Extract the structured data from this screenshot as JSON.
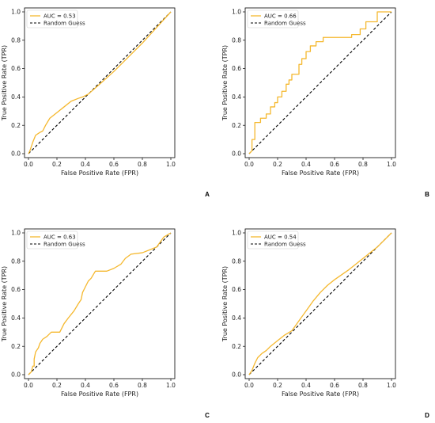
{
  "chart_data": [
    {
      "type": "line",
      "panel_label": "A",
      "xlabel": "False Positive Rate (FPR)",
      "ylabel": "True Positive Rate (TPR)",
      "xlim": [
        0,
        1
      ],
      "ylim": [
        0,
        1
      ],
      "xticks": [
        "0.0",
        "0.2",
        "0.4",
        "0.6",
        "0.8",
        "1.0"
      ],
      "yticks": [
        "0.0",
        "0.2",
        "0.4",
        "0.6",
        "0.8",
        "1.0"
      ],
      "grid": false,
      "legend_placement": "top-left",
      "series": [
        {
          "name": "AUC = 0.53",
          "color": "#f5b82e",
          "style": "solid",
          "points": [
            [
              0,
              0
            ],
            [
              0.01,
              0.02
            ],
            [
              0.03,
              0.08
            ],
            [
              0.05,
              0.13
            ],
            [
              0.08,
              0.15
            ],
            [
              0.1,
              0.16
            ],
            [
              0.12,
              0.2
            ],
            [
              0.15,
              0.25
            ],
            [
              0.2,
              0.29
            ],
            [
              0.25,
              0.33
            ],
            [
              0.3,
              0.37
            ],
            [
              0.35,
              0.39
            ],
            [
              0.38,
              0.4
            ],
            [
              0.42,
              0.42
            ],
            [
              0.5,
              0.49
            ],
            [
              0.6,
              0.58
            ],
            [
              0.7,
              0.68
            ],
            [
              0.8,
              0.78
            ],
            [
              0.9,
              0.89
            ],
            [
              1,
              1
            ]
          ]
        },
        {
          "name": "Random Guess",
          "color": "#000000",
          "style": "dashed",
          "points": [
            [
              0,
              0
            ],
            [
              1,
              1
            ]
          ]
        }
      ]
    },
    {
      "type": "line",
      "panel_label": "B",
      "xlabel": "False Positive Rate (FPR)",
      "ylabel": "True Positive Rate (TPR)",
      "xlim": [
        0,
        1
      ],
      "ylim": [
        0,
        1
      ],
      "xticks": [
        "0.0",
        "0.2",
        "0.4",
        "0.6",
        "0.8",
        "1.0"
      ],
      "yticks": [
        "0.0",
        "0.2",
        "0.4",
        "0.6",
        "0.8",
        "1.0"
      ],
      "grid": false,
      "legend_placement": "top-left",
      "series": [
        {
          "name": "AUC = 0.66",
          "color": "#f5b82e",
          "style": "solid",
          "points": [
            [
              0,
              0
            ],
            [
              0.02,
              0.02
            ],
            [
              0.02,
              0.1
            ],
            [
              0.04,
              0.1
            ],
            [
              0.04,
              0.22
            ],
            [
              0.08,
              0.22
            ],
            [
              0.08,
              0.25
            ],
            [
              0.12,
              0.25
            ],
            [
              0.12,
              0.28
            ],
            [
              0.15,
              0.28
            ],
            [
              0.15,
              0.33
            ],
            [
              0.18,
              0.33
            ],
            [
              0.18,
              0.36
            ],
            [
              0.2,
              0.36
            ],
            [
              0.2,
              0.4
            ],
            [
              0.23,
              0.4
            ],
            [
              0.23,
              0.44
            ],
            [
              0.26,
              0.44
            ],
            [
              0.26,
              0.49
            ],
            [
              0.28,
              0.49
            ],
            [
              0.28,
              0.52
            ],
            [
              0.3,
              0.52
            ],
            [
              0.3,
              0.56
            ],
            [
              0.35,
              0.56
            ],
            [
              0.35,
              0.63
            ],
            [
              0.37,
              0.63
            ],
            [
              0.37,
              0.67
            ],
            [
              0.4,
              0.67
            ],
            [
              0.4,
              0.72
            ],
            [
              0.43,
              0.72
            ],
            [
              0.43,
              0.76
            ],
            [
              0.47,
              0.76
            ],
            [
              0.47,
              0.79
            ],
            [
              0.52,
              0.79
            ],
            [
              0.52,
              0.82
            ],
            [
              0.72,
              0.82
            ],
            [
              0.72,
              0.84
            ],
            [
              0.78,
              0.84
            ],
            [
              0.78,
              0.88
            ],
            [
              0.82,
              0.88
            ],
            [
              0.82,
              0.93
            ],
            [
              0.9,
              0.93
            ],
            [
              0.9,
              1
            ],
            [
              1,
              1
            ]
          ]
        },
        {
          "name": "Random Guess",
          "color": "#000000",
          "style": "dashed",
          "points": [
            [
              0,
              0
            ],
            [
              1,
              1
            ]
          ]
        }
      ]
    },
    {
      "type": "line",
      "panel_label": "C",
      "xlabel": "False Positive Rate (FPR)",
      "ylabel": "True Positive Rate (TPR)",
      "xlim": [
        0,
        1
      ],
      "ylim": [
        0,
        1
      ],
      "xticks": [
        "0.0",
        "0.2",
        "0.4",
        "0.6",
        "0.8",
        "1.0"
      ],
      "yticks": [
        "0.0",
        "0.2",
        "0.4",
        "0.6",
        "0.8",
        "1.0"
      ],
      "grid": false,
      "legend_placement": "top-left",
      "series": [
        {
          "name": "AUC = 0.63",
          "color": "#f5b82e",
          "style": "solid",
          "points": [
            [
              0,
              0
            ],
            [
              0.02,
              0.02
            ],
            [
              0.03,
              0.06
            ],
            [
              0.04,
              0.06
            ],
            [
              0.04,
              0.11
            ],
            [
              0.05,
              0.16
            ],
            [
              0.07,
              0.19
            ],
            [
              0.08,
              0.22
            ],
            [
              0.1,
              0.25
            ],
            [
              0.13,
              0.27
            ],
            [
              0.16,
              0.3
            ],
            [
              0.22,
              0.3
            ],
            [
              0.25,
              0.36
            ],
            [
              0.28,
              0.4
            ],
            [
              0.32,
              0.45
            ],
            [
              0.35,
              0.5
            ],
            [
              0.37,
              0.53
            ],
            [
              0.38,
              0.58
            ],
            [
              0.4,
              0.62
            ],
            [
              0.42,
              0.66
            ],
            [
              0.44,
              0.68
            ],
            [
              0.47,
              0.73
            ],
            [
              0.55,
              0.73
            ],
            [
              0.6,
              0.75
            ],
            [
              0.65,
              0.78
            ],
            [
              0.68,
              0.82
            ],
            [
              0.72,
              0.85
            ],
            [
              0.8,
              0.86
            ],
            [
              0.85,
              0.88
            ],
            [
              0.9,
              0.9
            ],
            [
              0.95,
              0.97
            ],
            [
              1,
              1
            ]
          ]
        },
        {
          "name": "Random Guess",
          "color": "#000000",
          "style": "dashed",
          "points": [
            [
              0,
              0
            ],
            [
              1,
              1
            ]
          ]
        }
      ]
    },
    {
      "type": "line",
      "panel_label": "D",
      "xlabel": "False Positive Rate (FPR)",
      "ylabel": "True Positive Rate (TPR)",
      "xlim": [
        0,
        1
      ],
      "ylim": [
        0,
        1
      ],
      "xticks": [
        "0.0",
        "0.2",
        "0.4",
        "0.6",
        "0.8",
        "1.0"
      ],
      "yticks": [
        "0.0",
        "0.2",
        "0.4",
        "0.6",
        "0.8",
        "1.0"
      ],
      "grid": false,
      "legend_placement": "top-left",
      "series": [
        {
          "name": "AUC = 0.54",
          "color": "#f5b82e",
          "style": "solid",
          "points": [
            [
              0,
              0
            ],
            [
              0.02,
              0.03
            ],
            [
              0.04,
              0.08
            ],
            [
              0.06,
              0.12
            ],
            [
              0.09,
              0.15
            ],
            [
              0.12,
              0.17
            ],
            [
              0.15,
              0.2
            ],
            [
              0.2,
              0.24
            ],
            [
              0.25,
              0.28
            ],
            [
              0.3,
              0.31
            ],
            [
              0.35,
              0.38
            ],
            [
              0.4,
              0.45
            ],
            [
              0.45,
              0.52
            ],
            [
              0.5,
              0.58
            ],
            [
              0.55,
              0.63
            ],
            [
              0.6,
              0.67
            ],
            [
              0.7,
              0.74
            ],
            [
              0.8,
              0.82
            ],
            [
              0.85,
              0.86
            ],
            [
              0.9,
              0.9
            ],
            [
              1,
              1
            ]
          ]
        },
        {
          "name": "Random Guess",
          "color": "#000000",
          "style": "dashed",
          "points": [
            [
              0,
              0
            ],
            [
              1,
              1
            ]
          ]
        }
      ]
    }
  ]
}
